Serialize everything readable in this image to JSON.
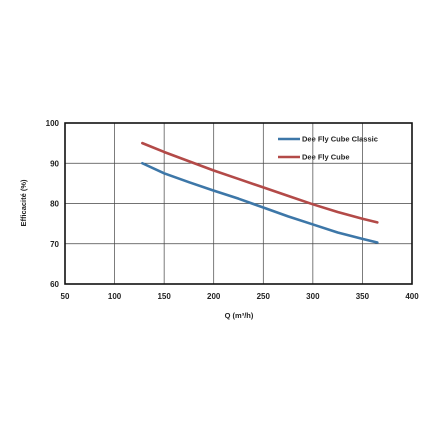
{
  "chart_data": {
    "type": "line",
    "xlabel": "Q (m³/h)",
    "ylabel": "Efficacité (%)",
    "xlim": [
      50,
      400
    ],
    "ylim": [
      60,
      100
    ],
    "x_ticks": [
      "50",
      "100",
      "150",
      "200",
      "250",
      "300",
      "350",
      "400"
    ],
    "y_ticks": [
      "60",
      "70",
      "80",
      "90",
      "100"
    ],
    "grid": true,
    "legend_position": "top-right",
    "series": [
      {
        "name": "Dee Fly Cube Classic",
        "color": "#3d77a8",
        "x": [
          128,
          150,
          175,
          200,
          225,
          250,
          275,
          300,
          325,
          350,
          365
        ],
        "y": [
          90.0,
          87.5,
          85.3,
          83.2,
          81.2,
          79.0,
          76.8,
          74.8,
          72.8,
          71.2,
          70.3
        ]
      },
      {
        "name": "Dee Fly Cube",
        "color": "#b34a48",
        "x": [
          128,
          150,
          175,
          200,
          225,
          250,
          275,
          300,
          325,
          350,
          365
        ],
        "y": [
          95.0,
          92.8,
          90.5,
          88.2,
          86.1,
          84.0,
          81.9,
          79.8,
          77.9,
          76.2,
          75.3
        ]
      }
    ]
  }
}
